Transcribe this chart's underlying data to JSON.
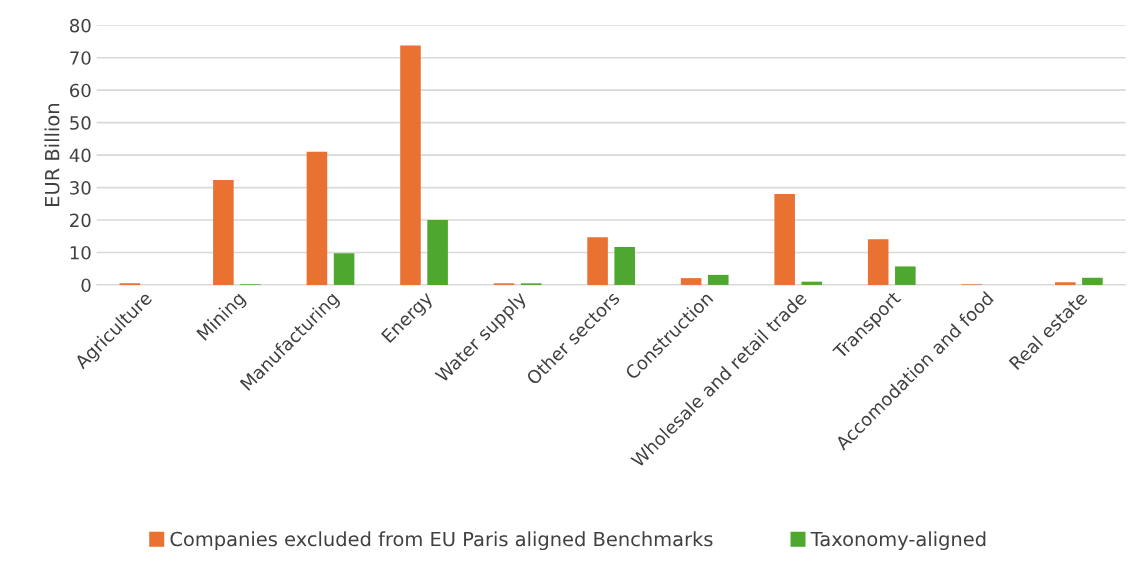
{
  "chart_data": {
    "type": "bar",
    "ylabel": "EUR Billion",
    "categories": [
      "Agriculture",
      "Mining",
      "Manufacturing",
      "Energy",
      "Water supply",
      "Other sectors",
      "Construction",
      "Wholesale and retail trade",
      "Transport",
      "Accomodation and food",
      "Real estate"
    ],
    "series": [
      {
        "name": "Companies excluded from EU Paris aligned Benchmarks",
        "color": "#e97132",
        "values": [
          0.5,
          32.3,
          41,
          73.8,
          0.5,
          14.7,
          2.1,
          28,
          14.1,
          0.2,
          0.8
        ]
      },
      {
        "name": "Taxonomy-aligned",
        "color": "#4ea72e",
        "values": [
          0,
          0.2,
          9.8,
          20,
          0.5,
          11.7,
          3.1,
          1,
          5.7,
          0,
          2.2
        ]
      }
    ],
    "ylim": [
      0,
      80
    ],
    "yticks": [
      0,
      10,
      20,
      30,
      40,
      50,
      60,
      70,
      80
    ],
    "grid": "y",
    "legend": "bottom"
  }
}
